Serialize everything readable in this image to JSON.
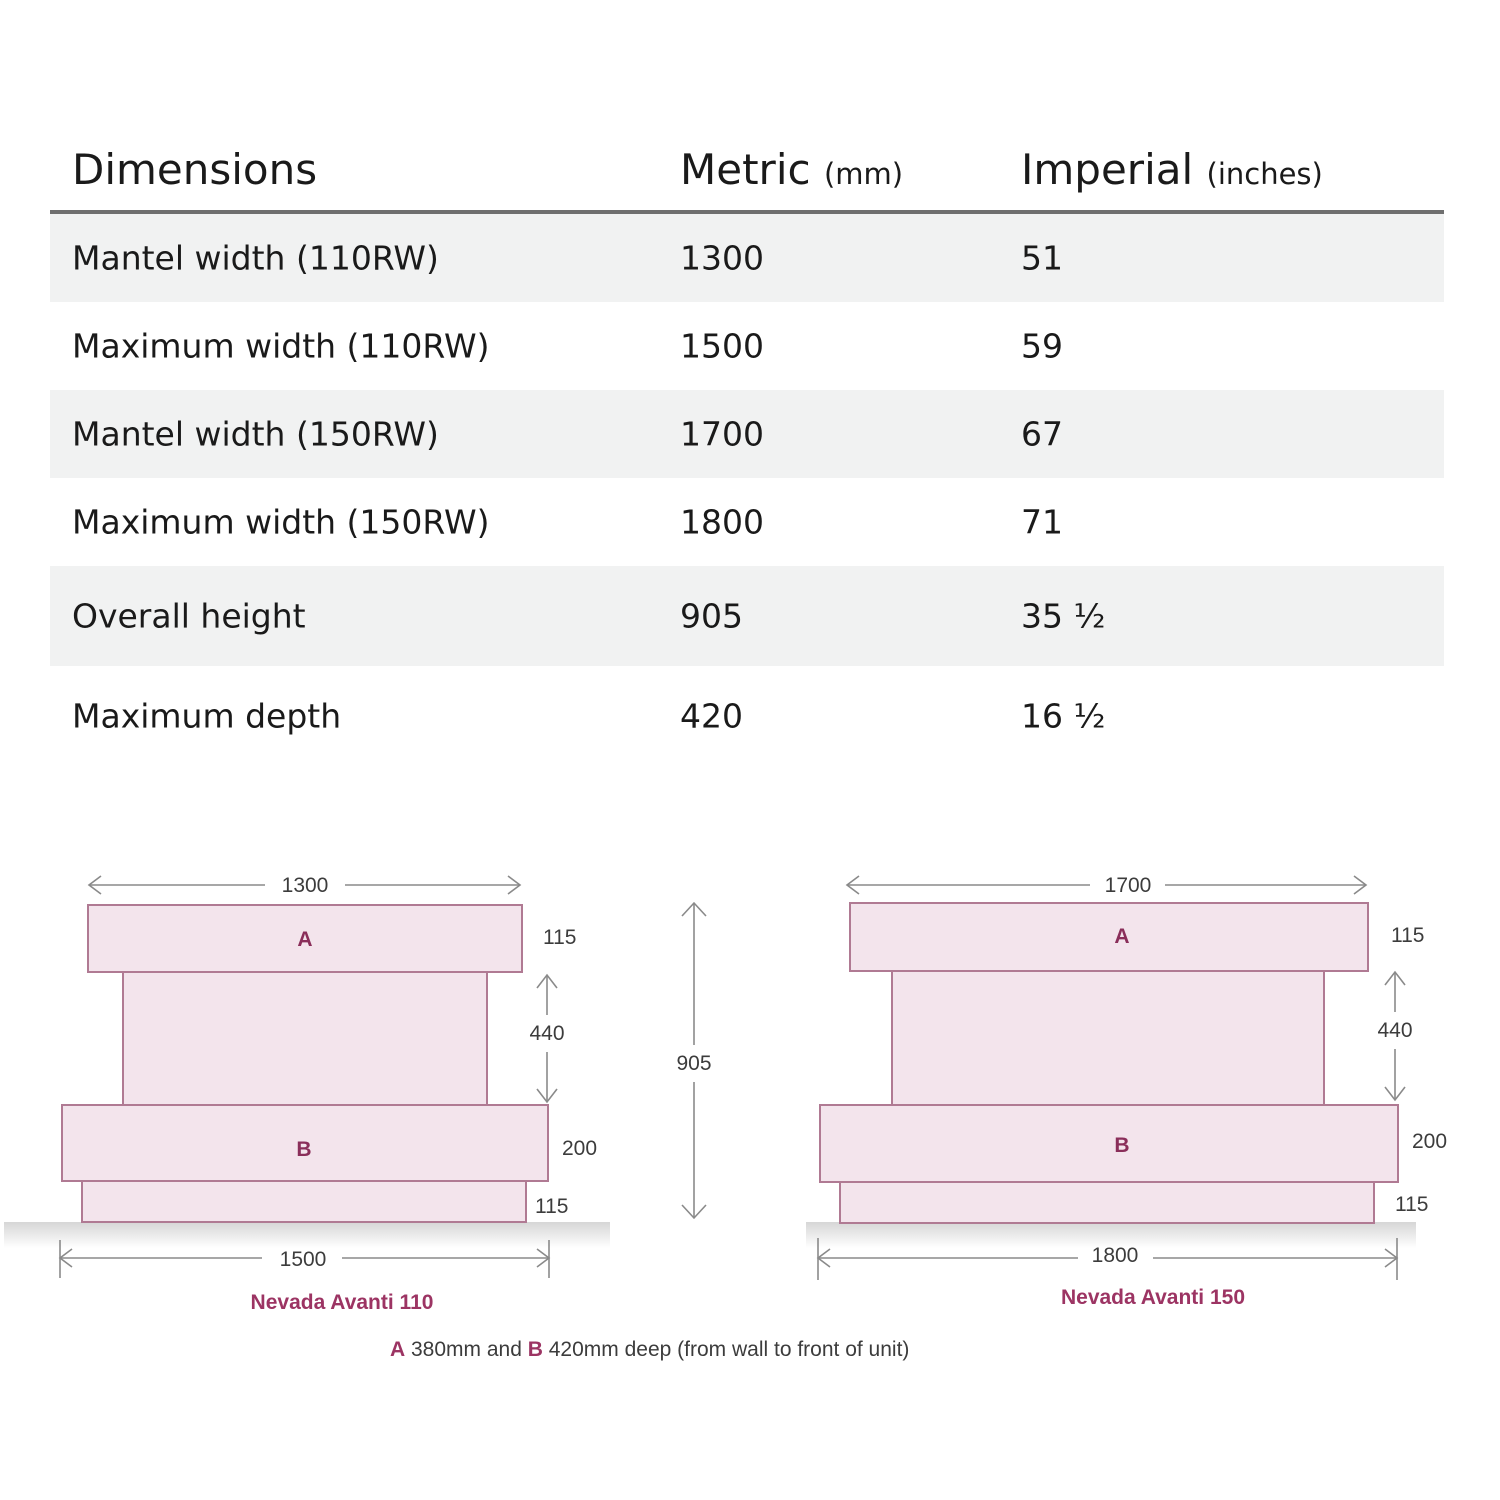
{
  "table": {
    "headers": {
      "dimensions": "Dimensions",
      "metric": "Metric",
      "metric_unit": "(mm)",
      "imperial": "Imperial",
      "imperial_unit": "(inches)"
    },
    "rows": [
      {
        "label": "Mantel width (110RW)",
        "metric": "1300",
        "imperial": "51"
      },
      {
        "label": "Maximum width (110RW)",
        "metric": "1500",
        "imperial": "59"
      },
      {
        "label": "Mantel width (150RW)",
        "metric": "1700",
        "imperial": "67"
      },
      {
        "label": "Maximum width (150RW)",
        "metric": "1800",
        "imperial": "71"
      },
      {
        "label": "Overall height",
        "metric": "905",
        "imperial": "35",
        "imperial_frac": "½"
      },
      {
        "label": "Maximum depth",
        "metric": "420",
        "imperial": "16",
        "imperial_frac": "½"
      }
    ]
  },
  "diagrams": {
    "left": {
      "top_width": "1300",
      "bottom_width": "1500",
      "label_a": "A",
      "label_b": "B",
      "h_top": "115",
      "h_gap": "440",
      "h_mid": "200",
      "h_base": "115",
      "model": "Nevada Avanti 110"
    },
    "overall_height": "905",
    "right": {
      "top_width": "1700",
      "bottom_width": "1800",
      "label_a": "A",
      "label_b": "B",
      "h_top": "115",
      "h_gap": "440",
      "h_mid": "200",
      "h_base": "115",
      "model": "Nevada Avanti 150"
    },
    "note": {
      "a": "A",
      "a_text": " 380mm and ",
      "b": "B",
      "b_text": " 420mm deep (from wall to front of unit)"
    }
  },
  "colors": {
    "block_fill": "#f3e4ec",
    "block_stroke": "#b07a93",
    "accent": "#9c3463",
    "row_shade": "#f1f2f2",
    "header_rule": "#6f6f6f"
  }
}
